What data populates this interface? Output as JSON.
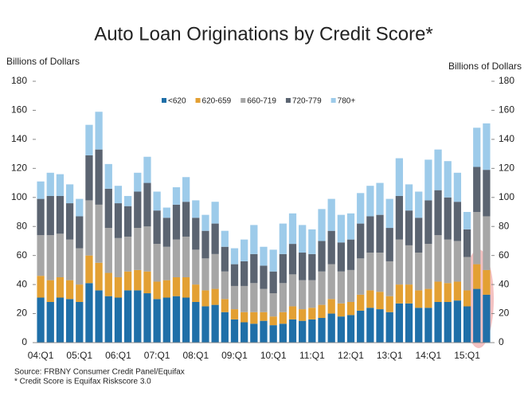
{
  "chart_data": {
    "type": "stacked_bar",
    "title": "Auto Loan Originations by Credit Score*",
    "y_label": "Billions of Dollars",
    "y2_label": "Billions of Dollars",
    "source": "Source: FRBNY Consumer Credit Panel/Equifax",
    "note": "* Credit Score is Equifax Riskscore 3.0",
    "categories": [
      "04:Q1",
      null,
      null,
      null,
      "05:Q1",
      null,
      null,
      null,
      "06:Q1",
      null,
      null,
      null,
      "07:Q1",
      null,
      null,
      null,
      "08:Q1",
      null,
      null,
      null,
      "09:Q1",
      null,
      null,
      null,
      "10:Q1",
      null,
      null,
      null,
      "11:Q1",
      null,
      null,
      null,
      "12:Q1",
      null,
      null,
      null,
      "13:Q1",
      null,
      null,
      null,
      "14:Q1",
      null,
      null,
      null,
      "15:Q1",
      null,
      null
    ],
    "series": [
      {
        "name": "<620",
        "color": "#1f6fa8",
        "values": [
          31,
          28,
          31,
          30,
          28,
          41,
          36,
          32,
          31,
          36,
          36,
          34,
          30,
          31,
          32,
          31,
          28,
          25,
          26,
          21,
          16,
          14,
          13,
          15,
          12,
          13,
          16,
          15,
          16,
          17,
          20,
          18,
          19,
          22,
          24,
          23,
          21,
          27,
          27,
          24,
          24,
          28,
          28,
          29,
          25,
          37,
          33
        ]
      },
      {
        "name": "620-659",
        "color": "#e3a033",
        "values": [
          15,
          15,
          14,
          13,
          12,
          19,
          19,
          16,
          14,
          13,
          14,
          15,
          12,
          12,
          13,
          14,
          12,
          11,
          11,
          9,
          7,
          7,
          8,
          6,
          6,
          8,
          9,
          8,
          8,
          9,
          10,
          9,
          9,
          11,
          12,
          12,
          11,
          13,
          13,
          12,
          13,
          14,
          13,
          13,
          11,
          17,
          17
        ]
      },
      {
        "name": "660-719",
        "color": "#a6a6a6",
        "values": [
          28,
          31,
          30,
          28,
          25,
          38,
          40,
          31,
          27,
          24,
          29,
          31,
          26,
          23,
          26,
          28,
          24,
          22,
          24,
          19,
          16,
          18,
          20,
          16,
          16,
          20,
          22,
          20,
          19,
          23,
          24,
          22,
          22,
          25,
          26,
          27,
          24,
          31,
          27,
          26,
          31,
          32,
          30,
          28,
          23,
          36,
          37
        ]
      },
      {
        "name": "720-779",
        "color": "#5b6471",
        "values": [
          25,
          27,
          26,
          25,
          22,
          31,
          38,
          27,
          24,
          21,
          25,
          30,
          23,
          20,
          24,
          24,
          22,
          19,
          21,
          17,
          15,
          17,
          20,
          16,
          15,
          20,
          21,
          19,
          18,
          21,
          23,
          20,
          21,
          24,
          25,
          26,
          23,
          30,
          24,
          24,
          30,
          31,
          29,
          27,
          19,
          31,
          32
        ]
      },
      {
        "name": "780+",
        "color": "#9dcbea",
        "values": [
          12,
          16,
          15,
          13,
          12,
          21,
          26,
          17,
          12,
          7,
          13,
          18,
          13,
          7,
          12,
          17,
          12,
          11,
          15,
          11,
          11,
          15,
          20,
          13,
          15,
          21,
          21,
          19,
          17,
          22,
          22,
          19,
          18,
          21,
          21,
          22,
          20,
          26,
          18,
          18,
          28,
          28,
          25,
          20,
          12,
          27,
          32
        ]
      }
    ],
    "ylim": [
      0,
      180
    ],
    "yticks": [
      0,
      20,
      40,
      60,
      80,
      100,
      120,
      140,
      160,
      180
    ],
    "y2lim": [
      0,
      180
    ],
    "y2ticks": [
      0,
      20,
      40,
      60,
      80,
      100,
      120,
      140,
      160,
      180
    ],
    "grid": false,
    "legend": "top"
  }
}
